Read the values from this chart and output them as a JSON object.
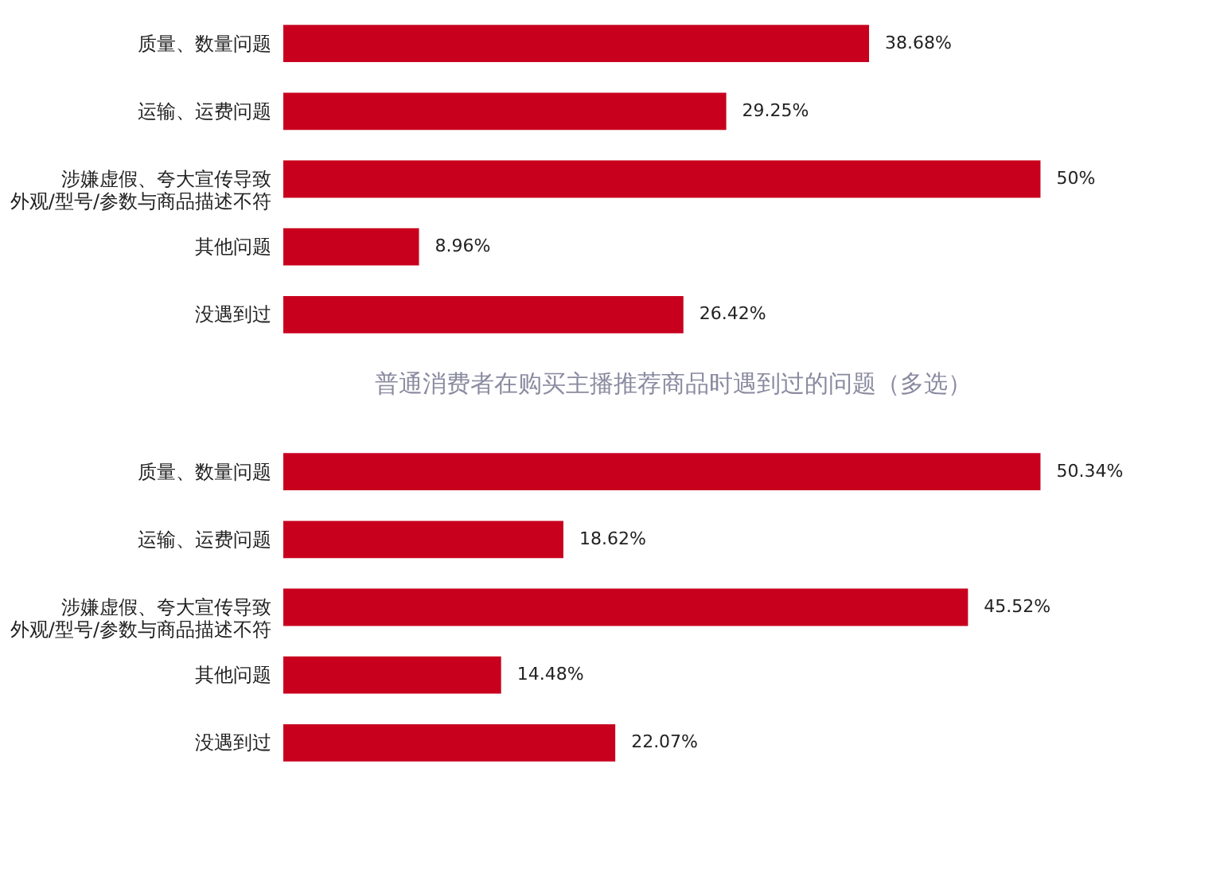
{
  "chart_data": [
    {
      "type": "bar",
      "orientation": "horizontal",
      "title": "普通消费者在购买主播推荐商品时遇到过的问题（多选）",
      "categories": [
        "质量、数量问题",
        "运输、运费问题",
        "涉嫌虚假、夸大宣传导致外观/型号/参数与商品描述不符",
        "其他问题",
        "没遇到过"
      ],
      "series": [
        {
          "color": "#c8001e",
          "values": [
            38.68,
            29.25,
            50,
            8.96,
            26.42
          ],
          "value_labels": [
            "38.68%",
            "29.25%",
            "50%",
            "8.96%",
            "26.42%"
          ]
        }
      ]
    },
    {
      "type": "bar",
      "orientation": "horizontal",
      "categories": [
        "质量、数量问题",
        "运输、运费问题",
        "涉嫌虚假、夸大宣传导致外观/型号/参数与商品描述不符",
        "其他问题",
        "没遇到过"
      ],
      "series": [
        {
          "color": "#c8001e",
          "values": [
            50.34,
            18.62,
            45.52,
            14.48,
            22.07
          ],
          "value_labels": [
            "50.34%",
            "18.62%",
            "45.52%",
            "14.48%",
            "22.07%"
          ]
        }
      ]
    }
  ]
}
